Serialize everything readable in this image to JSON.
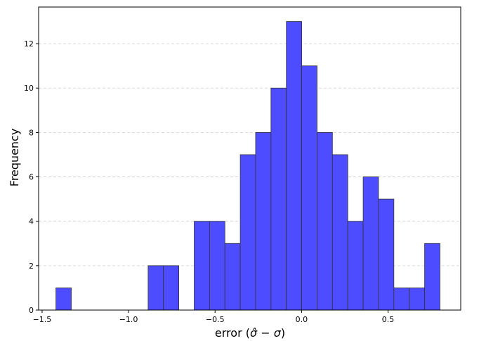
{
  "chart_data": {
    "type": "bar",
    "subtype": "histogram",
    "title": "",
    "xlabel_prefix": "error (",
    "xlabel_hat": "σ̂",
    "xlabel_middle": " − ",
    "xlabel_sigma": "σ",
    "xlabel_suffix": ")",
    "ylabel": "Frequency",
    "bar_color": "#4d4dff",
    "edge_color": "#333333",
    "grid": "horizontal dashed",
    "xlim": [
      -1.52,
      0.92
    ],
    "ylim": [
      0,
      13.65
    ],
    "bin_start": -1.42,
    "bin_width": 0.0888,
    "counts": [
      1,
      0,
      0,
      0,
      0,
      0,
      2,
      2,
      0,
      4,
      4,
      3,
      7,
      8,
      10,
      13,
      11,
      8,
      7,
      4,
      6,
      5,
      1,
      1,
      3
    ],
    "xticks": [
      -1.5,
      -1.0,
      -0.5,
      0.0,
      0.5
    ],
    "xtick_labels": [
      "−1.5",
      "−1.0",
      "−0.5",
      "0.0",
      "0.5"
    ],
    "yticks": [
      0,
      2,
      4,
      6,
      8,
      10,
      12
    ],
    "ytick_labels": [
      "0",
      "2",
      "4",
      "6",
      "8",
      "10",
      "12"
    ]
  }
}
